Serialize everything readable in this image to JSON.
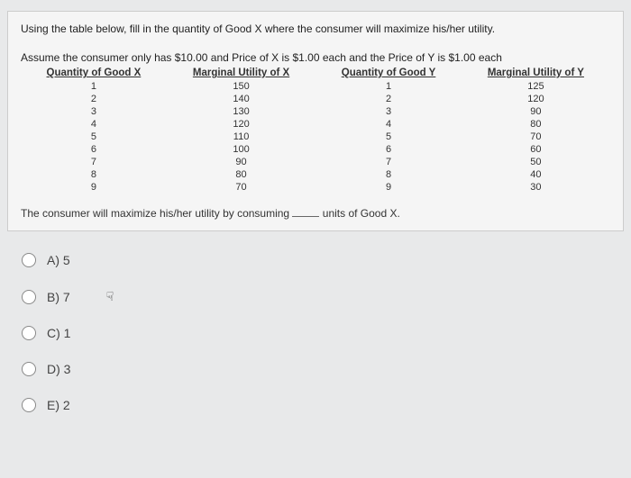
{
  "question": {
    "intro": "Using the table below, fill in the quantity of Good X where the consumer will maximize his/her utility.",
    "scenario": "Assume the consumer only has $10.00 and Price of X is $1.00 each and the Price of Y is $1.00 each",
    "headers": {
      "qx": "Quantity of Good X",
      "mux": "Marginal Utility of X",
      "qy": "Quantity of Good Y",
      "muy": "Marginal Utility of Y"
    },
    "rows": [
      {
        "qx": "1",
        "mux": "150",
        "qy": "1",
        "muy": "125"
      },
      {
        "qx": "2",
        "mux": "140",
        "qy": "2",
        "muy": "120"
      },
      {
        "qx": "3",
        "mux": "130",
        "qy": "3",
        "muy": "90"
      },
      {
        "qx": "4",
        "mux": "120",
        "qy": "4",
        "muy": "80"
      },
      {
        "qx": "5",
        "mux": "110",
        "qy": "5",
        "muy": "70"
      },
      {
        "qx": "6",
        "mux": "100",
        "qy": "6",
        "muy": "60"
      },
      {
        "qx": "7",
        "mux": "90",
        "qy": "7",
        "muy": "50"
      },
      {
        "qx": "8",
        "mux": "80",
        "qy": "8",
        "muy": "40"
      },
      {
        "qx": "9",
        "mux": "70",
        "qy": "9",
        "muy": "30"
      }
    ],
    "prompt_before": "The consumer will maximize his/her utility by consuming ",
    "prompt_after": " units of Good X."
  },
  "options": [
    {
      "label": "A) 5"
    },
    {
      "label": "B) 7"
    },
    {
      "label": "C) 1"
    },
    {
      "label": "D) 3"
    },
    {
      "label": "E) 2"
    }
  ],
  "cursor_glyph": "☟",
  "colors": {
    "page_bg": "#e8e9ea",
    "box_bg": "#f5f5f5",
    "border": "#cccccc",
    "text": "#333333"
  }
}
